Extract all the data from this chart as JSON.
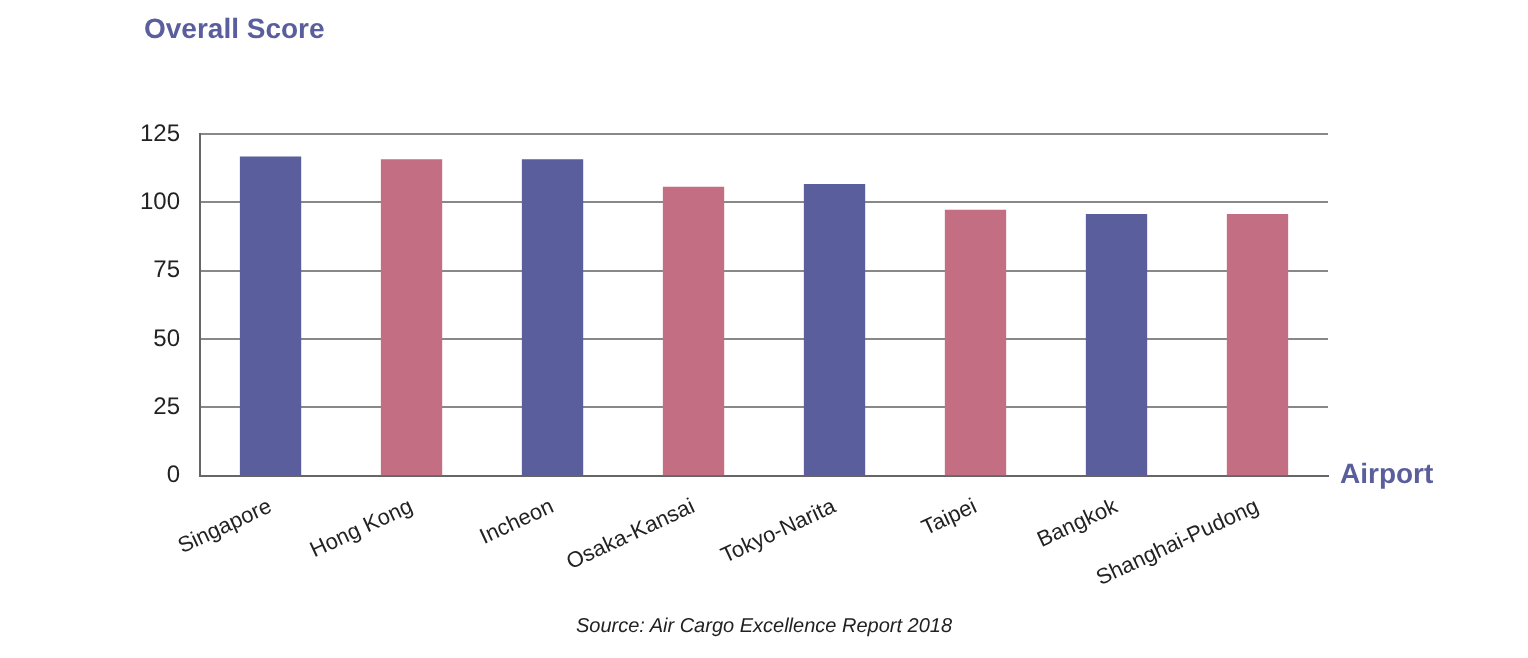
{
  "chart_data": {
    "type": "bar",
    "ylabel": "Overall Score",
    "xlabel": "Airport",
    "categories": [
      "Singapore",
      "Hong Kong",
      "Incheon",
      "Osaka-Kansai",
      "Tokyo-Narita",
      "Taipei",
      "Bangkok",
      "Shanghai-Pudong"
    ],
    "values": [
      116.5,
      115.5,
      115.5,
      105.5,
      106.5,
      97,
      95.5,
      95.5
    ],
    "colors": [
      "#5a5e9c",
      "#c46e84",
      "#5a5e9c",
      "#c46e84",
      "#5a5e9c",
      "#c46e84",
      "#5a5e9c",
      "#c46e84"
    ],
    "ylim": [
      0,
      125
    ],
    "yticks": [
      0,
      25,
      50,
      75,
      100,
      125
    ],
    "grid": "y",
    "annotations": [
      "Source: Air Cargo Excellence Report 2018"
    ]
  }
}
